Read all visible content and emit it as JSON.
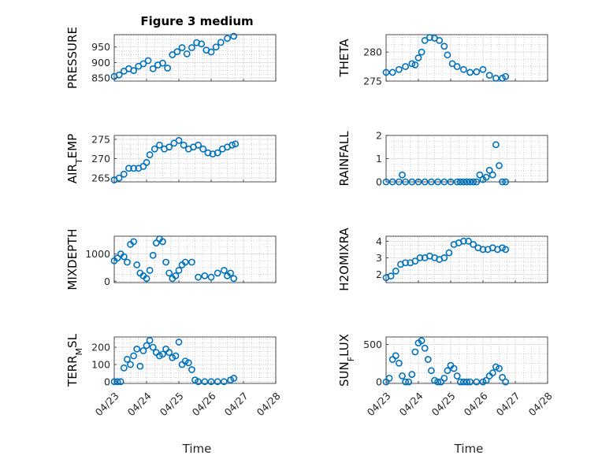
{
  "figure": {
    "title": "Figure 3 medium",
    "x_label": "Time",
    "x_tick_labels": [
      "04/23",
      "04/24",
      "04/25",
      "04/26",
      "04/27",
      "04/28"
    ]
  },
  "style": {
    "marker_color": "#0072BD",
    "axis_color": "#262626",
    "grid_color": "#b0b0b0"
  },
  "chart_data": [
    {
      "type": "scatter",
      "name": "pressure",
      "title": "Figure 3 medium",
      "ylabel": "PRESSURE",
      "ylim": [
        840,
        990
      ],
      "yticks": [
        850,
        900,
        950
      ],
      "xlim": [
        "04/23",
        "04/28"
      ],
      "grid": true,
      "x": [
        0,
        0.15,
        0.3,
        0.45,
        0.6,
        0.75,
        0.9,
        1.05,
        1.2,
        1.35,
        1.5,
        1.65,
        1.8,
        1.95,
        2.1,
        2.25,
        2.4,
        2.55,
        2.7,
        2.85,
        3.0,
        3.15,
        3.3,
        3.5,
        3.7
      ],
      "y": [
        855,
        860,
        872,
        880,
        874,
        888,
        896,
        906,
        880,
        892,
        898,
        882,
        925,
        935,
        948,
        928,
        948,
        964,
        960,
        940,
        934,
        950,
        965,
        978,
        985
      ]
    },
    {
      "type": "scatter",
      "name": "theta",
      "ylabel": "THETA",
      "ylim": [
        275,
        283
      ],
      "yticks": [
        275,
        280
      ],
      "xlim": [
        "04/23",
        "04/28"
      ],
      "grid": true,
      "x": [
        0,
        0.2,
        0.4,
        0.6,
        0.8,
        0.9,
        1.0,
        1.1,
        1.2,
        1.35,
        1.5,
        1.65,
        1.8,
        1.9,
        2.05,
        2.2,
        2.4,
        2.6,
        2.8,
        3.0,
        3.2,
        3.4,
        3.6,
        3.7
      ],
      "y": [
        276.5,
        276.5,
        277,
        277.5,
        278,
        277.8,
        279,
        280,
        282,
        282.5,
        282.4,
        282,
        281,
        279.5,
        278,
        277.5,
        277,
        276.5,
        276.6,
        277,
        276,
        275.5,
        275.5,
        275.8
      ]
    },
    {
      "type": "scatter",
      "name": "air_temp",
      "ylabel": "AIR_TEMP",
      "ylim": [
        264,
        276
      ],
      "yticks": [
        265,
        270,
        275
      ],
      "xlim": [
        "04/23",
        "04/28"
      ],
      "grid": true,
      "x": [
        0,
        0.15,
        0.3,
        0.45,
        0.6,
        0.75,
        0.9,
        1.0,
        1.1,
        1.25,
        1.4,
        1.55,
        1.7,
        1.85,
        2.0,
        2.15,
        2.3,
        2.45,
        2.6,
        2.75,
        2.9,
        3.05,
        3.2,
        3.35,
        3.5,
        3.65,
        3.75
      ],
      "y": [
        264.5,
        265,
        266,
        267.5,
        267.5,
        267.5,
        268,
        269,
        271,
        272.5,
        273.5,
        272.5,
        273,
        274,
        274.7,
        273.5,
        272.5,
        273,
        273.5,
        272.5,
        271.5,
        271.2,
        271.5,
        272.5,
        273,
        273.5,
        273.8
      ]
    },
    {
      "type": "scatter",
      "name": "rainfall",
      "ylabel": "RAINFALL",
      "ylim": [
        0,
        2
      ],
      "yticks": [
        0,
        1,
        2
      ],
      "xlim": [
        "04/23",
        "04/28"
      ],
      "grid": true,
      "x": [
        0,
        0.2,
        0.4,
        0.5,
        0.6,
        0.8,
        1.0,
        1.2,
        1.4,
        1.6,
        1.8,
        2.0,
        2.2,
        2.3,
        2.4,
        2.5,
        2.6,
        2.7,
        2.8,
        2.9,
        3.0,
        3.1,
        3.2,
        3.3,
        3.4,
        3.5,
        3.6,
        3.7
      ],
      "y": [
        0,
        0,
        0,
        0.3,
        0,
        0,
        0,
        0,
        0,
        0,
        0,
        0,
        0,
        0,
        0,
        0,
        0,
        0,
        0,
        0.3,
        0.1,
        0.2,
        0.5,
        0.3,
        1.6,
        0.7,
        0,
        0
      ]
    },
    {
      "type": "scatter",
      "name": "mixdepth",
      "ylabel": "MIXDEPTH",
      "ylim": [
        -50,
        1650
      ],
      "yticks": [
        0,
        1000
      ],
      "xlim": [
        "04/23",
        "04/28"
      ],
      "grid": true,
      "x": [
        0,
        0.1,
        0.2,
        0.3,
        0.4,
        0.5,
        0.6,
        0.7,
        0.8,
        0.9,
        1.0,
        1.1,
        1.2,
        1.3,
        1.4,
        1.5,
        1.6,
        1.7,
        1.8,
        1.9,
        2.0,
        2.1,
        2.2,
        2.4,
        2.6,
        2.8,
        3.0,
        3.2,
        3.4,
        3.5,
        3.6,
        3.7
      ],
      "y": [
        750,
        850,
        1000,
        900,
        700,
        1350,
        1450,
        600,
        300,
        200,
        100,
        400,
        950,
        1400,
        1550,
        1450,
        700,
        300,
        100,
        200,
        400,
        600,
        700,
        700,
        150,
        200,
        150,
        300,
        400,
        200,
        300,
        100
      ]
    },
    {
      "type": "scatter",
      "name": "h2omixra",
      "ylabel": "H2OMIXRA",
      "ylim": [
        1.5,
        4.3
      ],
      "yticks": [
        2,
        3,
        4
      ],
      "xlim": [
        "04/23",
        "04/28"
      ],
      "grid": true,
      "x": [
        0,
        0.15,
        0.3,
        0.45,
        0.6,
        0.75,
        0.9,
        1.05,
        1.2,
        1.35,
        1.5,
        1.65,
        1.8,
        1.95,
        2.1,
        2.25,
        2.4,
        2.55,
        2.7,
        2.85,
        3.0,
        3.15,
        3.3,
        3.45,
        3.6,
        3.7
      ],
      "y": [
        1.8,
        1.9,
        2.2,
        2.6,
        2.7,
        2.7,
        2.8,
        3.0,
        3.0,
        3.1,
        3.0,
        2.9,
        3.0,
        3.3,
        3.8,
        3.9,
        4.0,
        4.0,
        3.8,
        3.6,
        3.5,
        3.5,
        3.6,
        3.5,
        3.6,
        3.5
      ]
    },
    {
      "type": "scatter",
      "name": "terr_msl",
      "ylabel": "TERR_MSL",
      "ylim": [
        -10,
        260
      ],
      "yticks": [
        0,
        100,
        200
      ],
      "xlim": [
        "04/23",
        "04/28"
      ],
      "grid": true,
      "x": [
        0,
        0.1,
        0.2,
        0.3,
        0.4,
        0.5,
        0.6,
        0.7,
        0.8,
        0.9,
        1.0,
        1.1,
        1.2,
        1.3,
        1.4,
        1.5,
        1.6,
        1.7,
        1.8,
        1.9,
        2.0,
        2.1,
        2.2,
        2.3,
        2.4,
        2.5,
        2.6,
        2.8,
        3.0,
        3.2,
        3.4,
        3.6,
        3.7
      ],
      "y": [
        0,
        0,
        0,
        80,
        130,
        100,
        150,
        190,
        90,
        180,
        210,
        240,
        200,
        170,
        150,
        160,
        190,
        170,
        140,
        150,
        230,
        100,
        120,
        110,
        70,
        10,
        0,
        0,
        0,
        0,
        0,
        10,
        20
      ]
    },
    {
      "type": "scatter",
      "name": "sun_flux",
      "ylabel": "SUN_FLUX",
      "ylim": [
        -20,
        600
      ],
      "yticks": [
        0,
        500
      ],
      "xlim": [
        "04/23",
        "04/28"
      ],
      "grid": true,
      "x": [
        0,
        0.1,
        0.2,
        0.3,
        0.4,
        0.5,
        0.6,
        0.7,
        0.8,
        0.9,
        1.0,
        1.1,
        1.2,
        1.3,
        1.4,
        1.5,
        1.6,
        1.7,
        1.8,
        1.9,
        2.0,
        2.1,
        2.2,
        2.3,
        2.4,
        2.5,
        2.6,
        2.8,
        3.0,
        3.1,
        3.2,
        3.3,
        3.4,
        3.5,
        3.6,
        3.7
      ],
      "y": [
        0,
        50,
        300,
        350,
        250,
        80,
        0,
        0,
        100,
        400,
        520,
        550,
        450,
        300,
        150,
        20,
        0,
        0,
        50,
        150,
        220,
        180,
        80,
        0,
        0,
        0,
        0,
        0,
        0,
        20,
        80,
        120,
        200,
        180,
        60,
        0
      ]
    }
  ]
}
